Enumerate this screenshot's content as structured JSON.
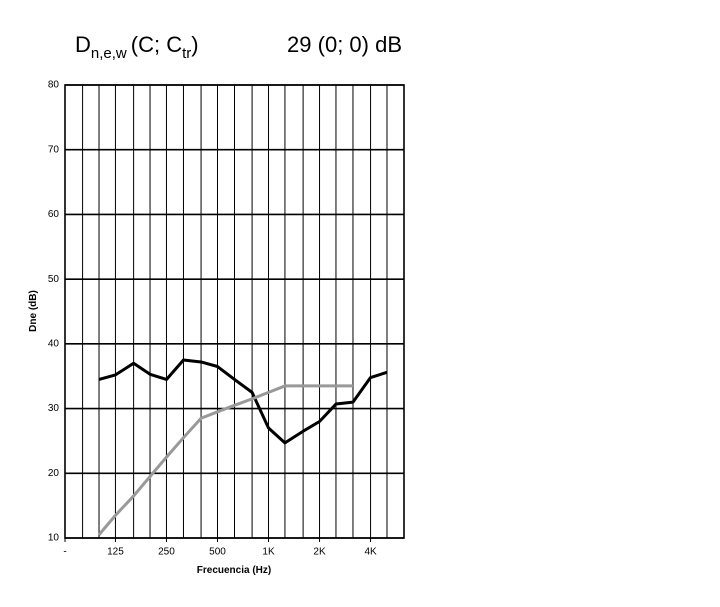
{
  "chart_data": {
    "type": "line",
    "title_parts": [
      "D",
      "n,e,w",
      "(C; C",
      "tr",
      ")"
    ],
    "rating": "29 (0; 0) dB",
    "ylabel": "Dne (dB)",
    "xlabel": "Frecuencia (Hz)",
    "x_log": true,
    "xlim": [
      63,
      6300
    ],
    "ylim": [
      10,
      80
    ],
    "yticks": [
      10,
      20,
      30,
      40,
      50,
      60,
      70,
      80
    ],
    "xticks": [
      {
        "value": 63,
        "label": "-"
      },
      125,
      250,
      500,
      {
        "value": 1000,
        "label": "1K"
      },
      {
        "value": 2000,
        "label": "2K"
      },
      {
        "value": 4000,
        "label": "4K"
      }
    ],
    "xminorticks": [
      63,
      80,
      100,
      125,
      160,
      200,
      250,
      315,
      400,
      500,
      630,
      800,
      1000,
      1250,
      1600,
      2000,
      2500,
      3150,
      4000,
      5000,
      6300
    ],
    "grid": true,
    "x": [
      100,
      125,
      160,
      200,
      250,
      315,
      400,
      500,
      630,
      800,
      1000,
      1250,
      1600,
      2000,
      2500,
      3150,
      4000,
      5000
    ],
    "series": [
      {
        "color": "#000000",
        "values": [
          34.5,
          35.2,
          37,
          35.3,
          34.5,
          37.5,
          37.2,
          36.5,
          34.5,
          32.5,
          27,
          24.7,
          26.5,
          28,
          30.7,
          31,
          34.8,
          35.6
        ]
      },
      {
        "color": "#999999",
        "values": [
          10.5,
          13.5,
          16.5,
          19.5,
          22.5,
          25.5,
          28.5,
          29.5,
          30.5,
          31.5,
          32.5,
          33.5,
          33.5,
          33.5,
          33.5,
          33.5,
          null,
          null
        ]
      }
    ]
  }
}
